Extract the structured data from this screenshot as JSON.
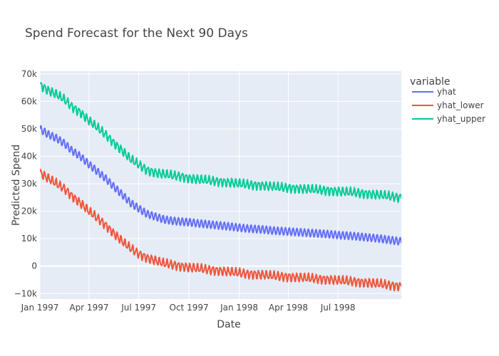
{
  "chart_data": {
    "type": "line",
    "title": "Spend Forecast for the Next 90 Days",
    "xlabel": "Date",
    "ylabel": "Predicted Spend",
    "x_range": [
      "1997-01-01",
      "1998-10-25"
    ],
    "ylim": [
      -12000,
      71000
    ],
    "x_ticks": [
      {
        "date": "1997-01-01",
        "label": "Jan 1997"
      },
      {
        "date": "1997-04-01",
        "label": "Apr 1997"
      },
      {
        "date": "1997-07-01",
        "label": "Jul 1997"
      },
      {
        "date": "1997-10-01",
        "label": "Oct 1997"
      },
      {
        "date": "1998-01-01",
        "label": "Jan 1998"
      },
      {
        "date": "1998-04-01",
        "label": "Apr 1998"
      },
      {
        "date": "1998-07-01",
        "label": "Jul 1998"
      }
    ],
    "y_ticks": [
      {
        "value": -10000,
        "label": "−10k"
      },
      {
        "value": 0,
        "label": "0"
      },
      {
        "value": 10000,
        "label": "10k"
      },
      {
        "value": 20000,
        "label": "20k"
      },
      {
        "value": 30000,
        "label": "30k"
      },
      {
        "value": 40000,
        "label": "40k"
      },
      {
        "value": 50000,
        "label": "50k"
      },
      {
        "value": 60000,
        "label": "60k"
      },
      {
        "value": 70000,
        "label": "70k"
      }
    ],
    "legend": {
      "title": "variable",
      "position": "right"
    },
    "grid": true,
    "series": [
      {
        "name": "yhat",
        "color": "#636efa",
        "x": [
          "1997-01-01",
          "1997-01-16",
          "1997-02-01",
          "1997-02-16",
          "1997-03-01",
          "1997-03-16",
          "1997-04-01",
          "1997-04-16",
          "1997-05-01",
          "1997-05-16",
          "1997-06-01",
          "1997-06-16",
          "1997-07-01",
          "1997-07-16",
          "1997-08-01",
          "1997-08-16",
          "1997-09-01",
          "1997-09-16",
          "1997-10-01",
          "1997-10-16",
          "1997-11-01",
          "1997-11-16",
          "1997-12-01",
          "1997-12-16",
          "1998-01-01",
          "1998-01-16",
          "1998-02-01",
          "1998-02-16",
          "1998-03-01",
          "1998-03-16",
          "1998-04-01",
          "1998-04-16",
          "1998-05-01",
          "1998-05-16",
          "1998-06-01",
          "1998-06-16",
          "1998-07-01",
          "1998-07-16",
          "1998-08-01",
          "1998-08-16",
          "1998-09-01",
          "1998-09-16",
          "1998-10-01",
          "1998-10-16",
          "1998-10-25"
        ],
        "y": [
          50000,
          48000,
          46500,
          44500,
          42000,
          40000,
          37000,
          34500,
          32000,
          29000,
          26000,
          23000,
          21000,
          19000,
          18000,
          17000,
          16500,
          16200,
          16000,
          15600,
          15300,
          15000,
          14700,
          14400,
          14000,
          13700,
          13500,
          13300,
          13000,
          12800,
          12600,
          12400,
          12200,
          12000,
          11800,
          11600,
          11300,
          11100,
          10900,
          10600,
          10300,
          10000,
          9600,
          9200,
          9000
        ]
      },
      {
        "name": "yhat_lower",
        "color": "#ef553b",
        "x": [
          "1997-01-01",
          "1997-01-16",
          "1997-02-01",
          "1997-02-16",
          "1997-03-01",
          "1997-03-16",
          "1997-04-01",
          "1997-04-16",
          "1997-05-01",
          "1997-05-16",
          "1997-06-01",
          "1997-06-16",
          "1997-07-01",
          "1997-07-16",
          "1997-08-01",
          "1997-08-16",
          "1997-09-01",
          "1997-09-16",
          "1997-10-01",
          "1997-10-16",
          "1997-11-01",
          "1997-11-16",
          "1997-12-01",
          "1997-12-16",
          "1998-01-01",
          "1998-01-16",
          "1998-02-01",
          "1998-02-16",
          "1998-03-01",
          "1998-03-16",
          "1998-04-01",
          "1998-04-16",
          "1998-05-01",
          "1998-05-16",
          "1998-06-01",
          "1998-06-16",
          "1998-07-01",
          "1998-07-16",
          "1998-08-01",
          "1998-08-16",
          "1998-09-01",
          "1998-09-16",
          "1998-10-01",
          "1998-10-16",
          "1998-10-25"
        ],
        "y": [
          34000,
          32000,
          30000,
          28000,
          25500,
          23000,
          20000,
          17500,
          15000,
          12000,
          9000,
          6500,
          4500,
          3000,
          2000,
          1000,
          500,
          0,
          -500,
          -800,
          -1200,
          -1500,
          -1800,
          -2100,
          -2500,
          -2800,
          -3000,
          -3200,
          -3500,
          -3700,
          -3900,
          -4100,
          -4300,
          -4500,
          -4700,
          -4900,
          -5200,
          -5400,
          -5600,
          -5900,
          -6200,
          -6500,
          -6900,
          -7200,
          -7300
        ]
      },
      {
        "name": "yhat_upper",
        "color": "#00cc96",
        "x": [
          "1997-01-01",
          "1997-01-16",
          "1997-02-01",
          "1997-02-16",
          "1997-03-01",
          "1997-03-16",
          "1997-04-01",
          "1997-04-16",
          "1997-05-01",
          "1997-05-16",
          "1997-06-01",
          "1997-06-16",
          "1997-07-01",
          "1997-07-16",
          "1997-08-01",
          "1997-08-16",
          "1997-09-01",
          "1997-09-16",
          "1997-10-01",
          "1997-10-16",
          "1997-11-01",
          "1997-11-16",
          "1997-12-01",
          "1997-12-16",
          "1998-01-01",
          "1998-01-16",
          "1998-02-01",
          "1998-02-16",
          "1998-03-01",
          "1998-03-16",
          "1998-04-01",
          "1998-04-16",
          "1998-05-01",
          "1998-05-16",
          "1998-06-01",
          "1998-06-16",
          "1998-07-01",
          "1998-07-16",
          "1998-08-01",
          "1998-08-16",
          "1998-09-01",
          "1998-09-16",
          "1998-10-01",
          "1998-10-16",
          "1998-10-25"
        ],
        "y": [
          66000,
          64000,
          62500,
          60500,
          58000,
          56000,
          53000,
          50500,
          48000,
          45000,
          42000,
          39000,
          37000,
          35000,
          34000,
          33500,
          33000,
          32700,
          32000,
          31600,
          31300,
          31000,
          30700,
          30400,
          30000,
          29700,
          29500,
          29300,
          29000,
          28700,
          28500,
          28300,
          28100,
          27900,
          27700,
          27500,
          27200,
          27000,
          26800,
          26500,
          26200,
          25900,
          25500,
          25100,
          25000
        ]
      }
    ]
  }
}
